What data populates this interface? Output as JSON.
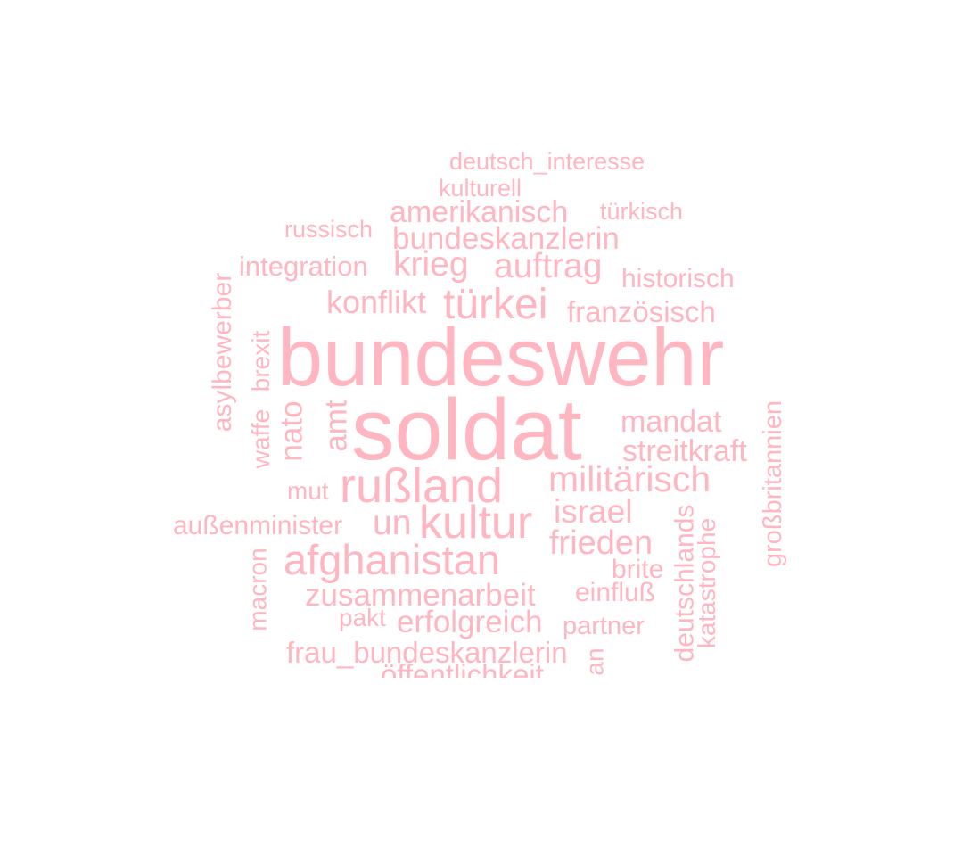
{
  "colors": {
    "word": "#FFB6C1",
    "background": "#FFFFFF"
  },
  "words": [
    {
      "text": "deutsch_interesse"
    },
    {
      "text": "kulturell"
    },
    {
      "text": "amerikanisch"
    },
    {
      "text": "türkisch"
    },
    {
      "text": "russisch"
    },
    {
      "text": "bundeskanzlerin"
    },
    {
      "text": "integration"
    },
    {
      "text": "krieg"
    },
    {
      "text": "auftrag"
    },
    {
      "text": "historisch"
    },
    {
      "text": "konflikt"
    },
    {
      "text": "türkei"
    },
    {
      "text": "französisch"
    },
    {
      "text": "bundeswehr"
    },
    {
      "text": "soldat"
    },
    {
      "text": "mandat"
    },
    {
      "text": "streitkraft"
    },
    {
      "text": "militärisch"
    },
    {
      "text": "rußland"
    },
    {
      "text": "mut"
    },
    {
      "text": "israel"
    },
    {
      "text": "außenminister"
    },
    {
      "text": "un"
    },
    {
      "text": "kultur"
    },
    {
      "text": "frieden"
    },
    {
      "text": "afghanistan"
    },
    {
      "text": "brite"
    },
    {
      "text": "zusammenarbeit"
    },
    {
      "text": "einfluß"
    },
    {
      "text": "pakt"
    },
    {
      "text": "erfolgreich"
    },
    {
      "text": "partner"
    },
    {
      "text": "frau_bundeskanzlerin"
    },
    {
      "text": "öffentlichkeit"
    },
    {
      "text": "asylbewerber"
    },
    {
      "text": "waffe"
    },
    {
      "text": "brexit"
    },
    {
      "text": "nato"
    },
    {
      "text": "amt"
    },
    {
      "text": "macron"
    },
    {
      "text": "großbritannien"
    },
    {
      "text": "deutschlands"
    },
    {
      "text": "katastrophe"
    },
    {
      "text": "an"
    }
  ]
}
